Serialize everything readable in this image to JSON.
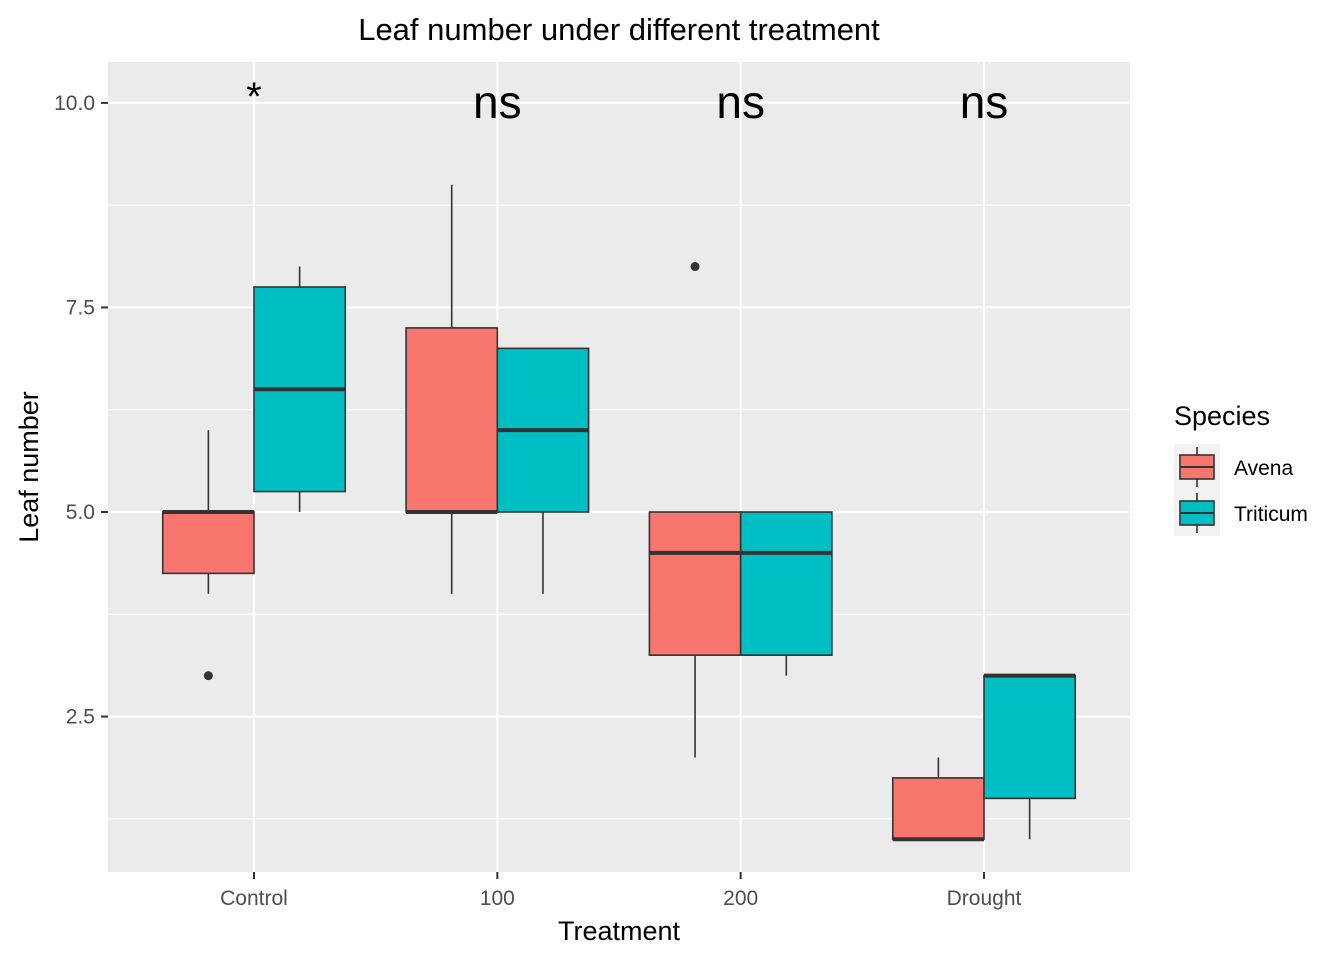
{
  "chart_data": {
    "type": "box",
    "title": "Leaf number under different treatment",
    "xlabel": "Treatment",
    "ylabel": "Leaf number",
    "categories": [
      "Control",
      "100",
      "200",
      "Drought"
    ],
    "ylim": [
      0.6,
      10.5
    ],
    "yticks": [
      2.5,
      5.0,
      7.5,
      10.0
    ],
    "ytick_labels": [
      "2.5",
      "5.0",
      "7.5",
      "10.0"
    ],
    "grid": true,
    "legend": {
      "title": "Species",
      "position": "right"
    },
    "annotations": [
      "*",
      "ns",
      "ns",
      "ns"
    ],
    "series": [
      {
        "name": "Avena",
        "color": "#F8766D",
        "boxes": [
          {
            "min": 4,
            "q1": 4.25,
            "median": 5,
            "q3": 5,
            "max": 6,
            "outliers": [
              3
            ]
          },
          {
            "min": 4,
            "q1": 5,
            "median": 5,
            "q3": 7.25,
            "max": 9,
            "outliers": []
          },
          {
            "min": 2,
            "q1": 3.25,
            "median": 4.5,
            "q3": 5,
            "max": 5,
            "outliers": [
              8
            ]
          },
          {
            "min": 1,
            "q1": 1,
            "median": 1,
            "q3": 1.75,
            "max": 2,
            "outliers": []
          }
        ]
      },
      {
        "name": "Triticum",
        "color": "#00BFC4",
        "boxes": [
          {
            "min": 5,
            "q1": 5.25,
            "median": 6.5,
            "q3": 7.75,
            "max": 8,
            "outliers": []
          },
          {
            "min": 4,
            "q1": 5,
            "median": 6,
            "q3": 7,
            "max": 7,
            "outliers": []
          },
          {
            "min": 3,
            "q1": 3.25,
            "median": 4.5,
            "q3": 5,
            "max": 5,
            "outliers": []
          },
          {
            "min": 1,
            "q1": 1.5,
            "median": 3,
            "q3": 3,
            "max": 3,
            "outliers": []
          }
        ]
      }
    ]
  }
}
